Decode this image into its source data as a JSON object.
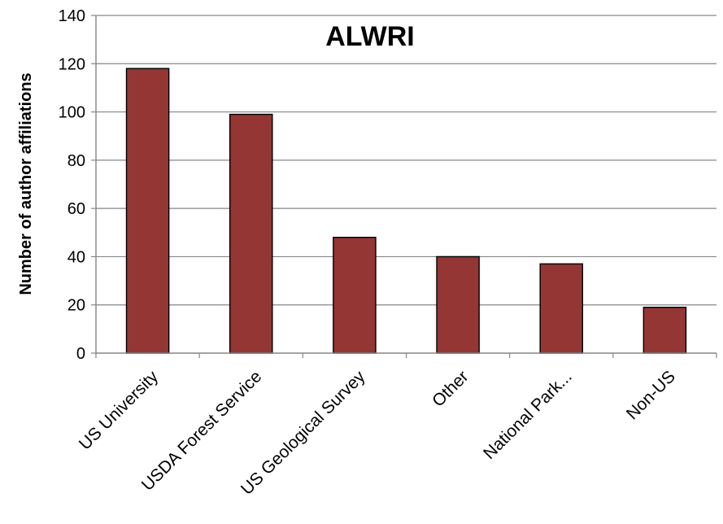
{
  "chart_data": {
    "type": "bar",
    "title": "ALWRI",
    "xlabel": "",
    "ylabel": "Number of author affiliations",
    "categories": [
      "US University",
      "USDA Forest Service",
      "US Geological Survey",
      "Other",
      "National Park...",
      "Non-US"
    ],
    "values": [
      118,
      99,
      48,
      40,
      37,
      19
    ],
    "ylim": [
      0,
      140
    ],
    "yticks": [
      0,
      20,
      40,
      60,
      80,
      100,
      120,
      140
    ],
    "grid": true,
    "legend": "none",
    "bar_color": "#943634",
    "bar_edge_color": "#000000",
    "grid_color": "#868686"
  }
}
